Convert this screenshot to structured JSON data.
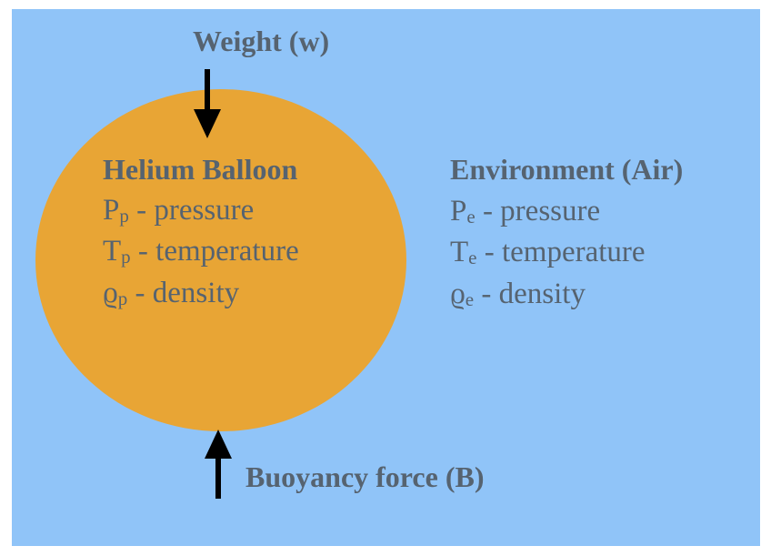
{
  "weight_label": "Weight (w)",
  "buoyancy_label": "Buoyancy force (B)",
  "balloon": {
    "title": "Helium Balloon",
    "pressure": {
      "symbol": "P",
      "sub": "p",
      "text": " - pressure"
    },
    "temperature": {
      "symbol": "T",
      "sub": "p",
      "text": " - temperature"
    },
    "density": {
      "symbol": "ϱ",
      "sub": "p",
      "text": " - density"
    }
  },
  "environment": {
    "title": "Environment (Air)",
    "pressure": {
      "symbol": "P",
      "sub": "e",
      "text": " - pressure"
    },
    "temperature": {
      "symbol": "T",
      "sub": "e",
      "text": " - temperature"
    },
    "density": {
      "symbol": "ϱ",
      "sub": "e",
      "text": " - density"
    }
  },
  "colors": {
    "background": "#90c4f8",
    "balloon": "#e8a535",
    "text": "#566370",
    "arrow": "#000000"
  }
}
